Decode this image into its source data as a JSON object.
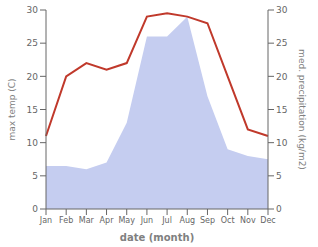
{
  "chart_data": {
    "type": "line",
    "x_label": "date (month)",
    "y_label": "max temp (C)",
    "y2_label": "med. precipitation (kg/m2)",
    "categories": [
      "Jan",
      "Feb",
      "Mar",
      "Apr",
      "May",
      "Jun",
      "Jul",
      "Aug",
      "Sep",
      "Oct",
      "Nov",
      "Dec"
    ],
    "series": [
      {
        "type": "area",
        "axis": "y2",
        "color": "#c5cdf0",
        "values": [
          6.5,
          6.5,
          6,
          7,
          13,
          26,
          26,
          29,
          17,
          9,
          8,
          7.5
        ]
      },
      {
        "type": "line",
        "color": "#c0392b",
        "values": [
          11,
          20,
          22,
          21,
          22,
          29,
          29.5,
          29,
          28,
          20,
          12,
          11
        ]
      }
    ],
    "ylim": [
      0,
      30
    ],
    "yticks": [
      0,
      5,
      10,
      15,
      20,
      25,
      30
    ],
    "y2lim": [
      0,
      30
    ],
    "y2ticks": [
      0,
      5,
      10,
      15,
      20,
      25,
      30
    ],
    "grid": false
  }
}
